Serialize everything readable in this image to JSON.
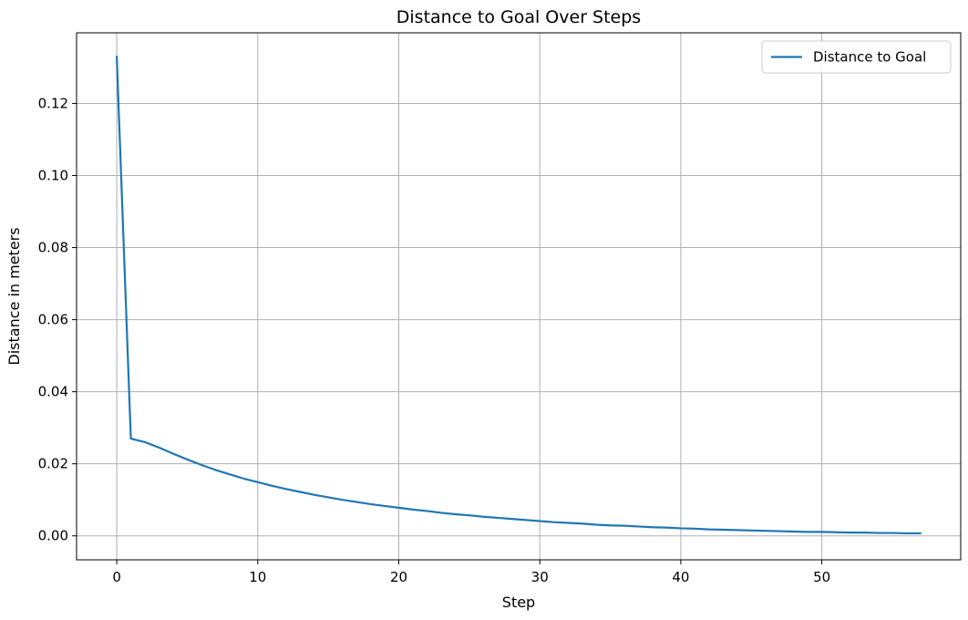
{
  "chart_data": {
    "type": "line",
    "title": "Distance to Goal Over Steps",
    "xlabel": "Step",
    "ylabel": "Distance in meters",
    "xlim": [
      -2.85,
      59.85
    ],
    "ylim": [
      -0.00665,
      0.1396
    ],
    "xticks": [
      0,
      10,
      20,
      30,
      40,
      50
    ],
    "yticks": [
      0.0,
      0.02,
      0.04,
      0.06,
      0.08,
      0.1,
      0.12
    ],
    "ytick_labels": [
      "0.00",
      "0.02",
      "0.04",
      "0.06",
      "0.08",
      "0.10",
      "0.12"
    ],
    "grid": true,
    "legend_position": "top-right",
    "series": [
      {
        "name": "Distance to Goal",
        "color": "#1f77b4",
        "x": [
          0,
          1,
          2,
          3,
          4,
          5,
          6,
          7,
          8,
          9,
          10,
          11,
          12,
          13,
          14,
          15,
          16,
          17,
          18,
          19,
          20,
          21,
          22,
          23,
          24,
          25,
          26,
          27,
          28,
          29,
          30,
          31,
          32,
          33,
          34,
          35,
          36,
          37,
          38,
          39,
          40,
          41,
          42,
          43,
          44,
          45,
          46,
          47,
          48,
          49,
          50,
          51,
          52,
          53,
          54,
          55,
          56,
          57
        ],
        "y": [
          0.133,
          0.027,
          0.026,
          0.0245,
          0.0228,
          0.0212,
          0.0197,
          0.0183,
          0.0171,
          0.0159,
          0.0149,
          0.0139,
          0.013,
          0.0122,
          0.0114,
          0.0107,
          0.01,
          0.0094,
          0.0088,
          0.0083,
          0.0078,
          0.0073,
          0.0069,
          0.0064,
          0.006,
          0.0057,
          0.0053,
          0.005,
          0.0047,
          0.0044,
          0.0041,
          0.0038,
          0.0036,
          0.0034,
          0.0031,
          0.0029,
          0.0028,
          0.0026,
          0.0024,
          0.0023,
          0.0021,
          0.002,
          0.0018,
          0.0017,
          0.0016,
          0.0015,
          0.0014,
          0.0013,
          0.0012,
          0.0011,
          0.0011,
          0.001,
          0.0009,
          0.0009,
          0.0008,
          0.0008,
          0.0007,
          0.0007
        ]
      }
    ]
  }
}
